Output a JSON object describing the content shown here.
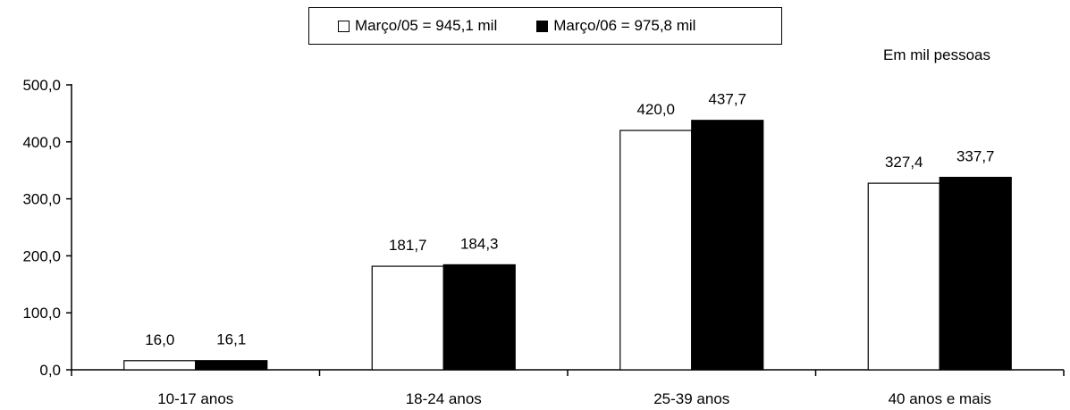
{
  "chart_data": {
    "type": "bar",
    "categories": [
      "10-17 anos",
      "18-24 anos",
      "25-39 anos",
      "40 anos e mais"
    ],
    "series": [
      {
        "name": "Março/05 = 945,1 mil",
        "values": [
          16.0,
          181.7,
          420.0,
          327.4
        ],
        "labels": [
          "16,0",
          "181,7",
          "420,0",
          "327,4"
        ],
        "color": "#ffffff"
      },
      {
        "name": "Março/06 = 975,8 mil",
        "values": [
          16.1,
          184.3,
          437.7,
          337.7
        ],
        "labels": [
          "16,1",
          "184,3",
          "437,7",
          "337,7"
        ],
        "color": "#000000"
      }
    ],
    "unit_note": "Em mil pessoas",
    "ylim": [
      0,
      500
    ],
    "yticks": [
      0,
      100,
      200,
      300,
      400,
      500
    ],
    "ytick_labels": [
      "0,0",
      "100,0",
      "200,0",
      "300,0",
      "400,0",
      "500,0"
    ],
    "legend_position": "top-center",
    "grid": false
  }
}
